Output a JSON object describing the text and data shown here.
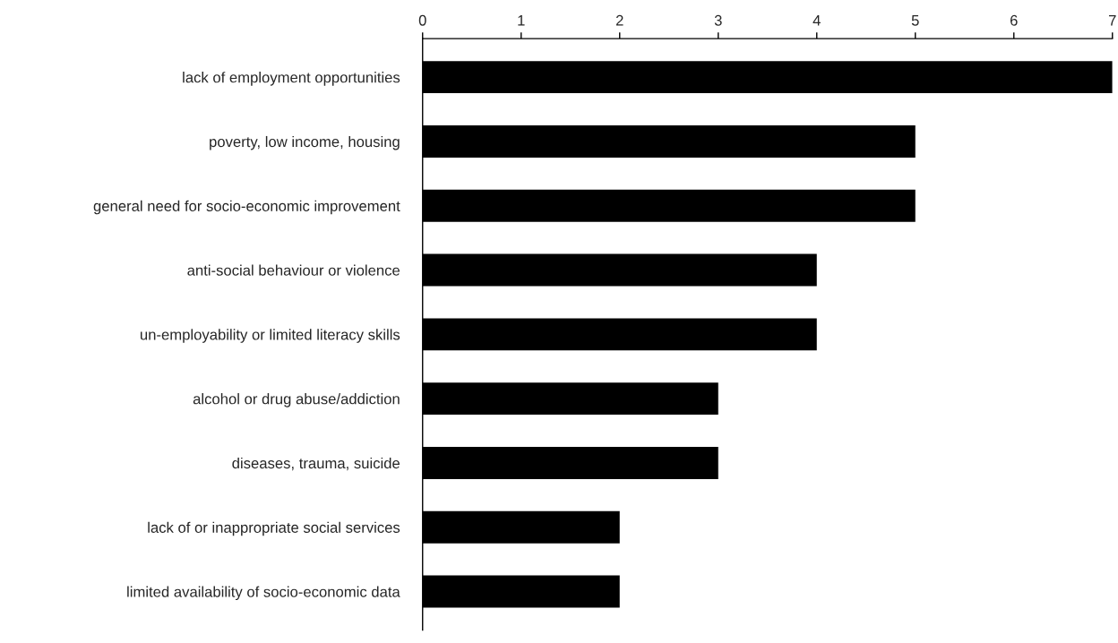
{
  "chart_data": {
    "type": "bar",
    "orientation": "horizontal",
    "categories": [
      "lack of employment opportunities",
      "poverty, low income, housing",
      "general need for socio-economic improvement",
      "anti-social behaviour or violence",
      "un-employability or limited literacy skills",
      "alcohol or drug abuse/addiction",
      "diseases, trauma, suicide",
      "lack of or inappropriate social services",
      "limited availability of socio-economic data"
    ],
    "values": [
      7,
      5,
      5,
      4,
      4,
      3,
      3,
      2,
      2
    ],
    "color": "#000000",
    "xlim": [
      0,
      7
    ],
    "xticks": [
      0,
      1,
      2,
      3,
      4,
      5,
      6,
      7
    ],
    "grid": false
  }
}
